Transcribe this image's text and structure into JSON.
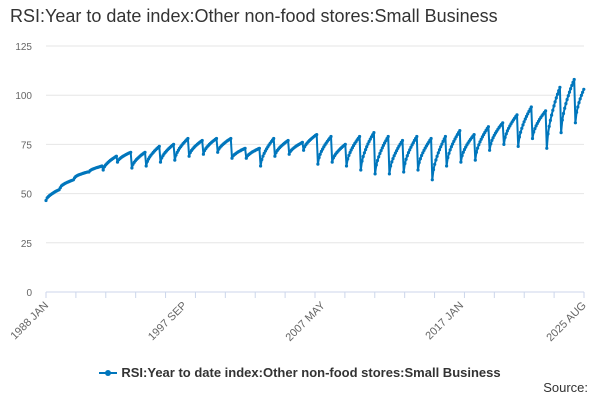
{
  "title": "RSI:Year to date index:Other non-food stores:Small Business",
  "source_label": "Source:",
  "legend": {
    "label": "RSI:Year to date index:Other non-food stores:Small Business",
    "color": "#0076BC"
  },
  "chart_data": {
    "type": "line",
    "title": "RSI:Year to date index:Other non-food stores:Small Business",
    "xlabel": "",
    "ylabel": "",
    "ylim": [
      0,
      125
    ],
    "yticks": [
      0,
      25,
      50,
      75,
      100,
      125
    ],
    "xlim": [
      1988.0,
      2025.6
    ],
    "xticks": [
      {
        "label": "1988 JAN",
        "value": 1988.0
      },
      {
        "label": "1997 SEP",
        "value": 1997.67
      },
      {
        "label": "2007 MAY",
        "value": 2007.33
      },
      {
        "label": "2017 JAN",
        "value": 2017.0
      },
      {
        "label": "2025 AUG",
        "value": 2025.58
      }
    ],
    "grid": true,
    "legend_position": "bottom",
    "series": [
      {
        "name": "RSI:Year to date index:Other non-food stores:Small Business",
        "color": "#0076BC",
        "markers": true,
        "years": [
          {
            "year": 1988,
            "start": 46.5,
            "end": 52
          },
          {
            "year": 1989,
            "start": 53,
            "end": 57
          },
          {
            "year": 1990,
            "start": 58,
            "end": 61
          },
          {
            "year": 1991,
            "start": 61,
            "end": 64
          },
          {
            "year": 1992,
            "start": 62,
            "end": 69
          },
          {
            "year": 1993,
            "start": 66,
            "end": 71
          },
          {
            "year": 1994,
            "start": 63,
            "end": 71
          },
          {
            "year": 1995,
            "start": 64,
            "end": 74
          },
          {
            "year": 1996,
            "start": 66,
            "end": 75
          },
          {
            "year": 1997,
            "start": 67,
            "end": 78
          },
          {
            "year": 1998,
            "start": 69,
            "end": 77
          },
          {
            "year": 1999,
            "start": 70,
            "end": 78
          },
          {
            "year": 2000,
            "start": 71,
            "end": 78
          },
          {
            "year": 2001,
            "start": 68,
            "end": 73
          },
          {
            "year": 2002,
            "start": 68,
            "end": 73
          },
          {
            "year": 2003,
            "start": 64,
            "end": 78
          },
          {
            "year": 2004,
            "start": 69,
            "end": 77
          },
          {
            "year": 2005,
            "start": 70,
            "end": 76
          },
          {
            "year": 2006,
            "start": 72,
            "end": 80
          },
          {
            "year": 2007,
            "start": 65,
            "end": 79
          },
          {
            "year": 2008,
            "start": 66,
            "end": 75
          },
          {
            "year": 2009,
            "start": 64,
            "end": 79
          },
          {
            "year": 2010,
            "start": 62,
            "end": 81
          },
          {
            "year": 2011,
            "start": 60,
            "end": 79
          },
          {
            "year": 2012,
            "start": 60,
            "end": 77
          },
          {
            "year": 2013,
            "start": 61,
            "end": 79
          },
          {
            "year": 2014,
            "start": 62,
            "end": 78
          },
          {
            "year": 2015,
            "start": 57,
            "end": 79
          },
          {
            "year": 2016,
            "start": 64,
            "end": 82
          },
          {
            "year": 2017,
            "start": 66,
            "end": 80
          },
          {
            "year": 2018,
            "start": 67,
            "end": 84
          },
          {
            "year": 2019,
            "start": 72,
            "end": 86
          },
          {
            "year": 2020,
            "start": 75,
            "end": 90
          },
          {
            "year": 2021,
            "start": 74,
            "end": 94
          },
          {
            "year": 2022,
            "start": 78,
            "end": 92
          },
          {
            "year": 2023,
            "start": 73,
            "end": 104
          },
          {
            "year": 2024,
            "start": 81,
            "end": 108
          },
          {
            "year": 2025,
            "start": 86,
            "end": 103
          }
        ]
      }
    ]
  }
}
